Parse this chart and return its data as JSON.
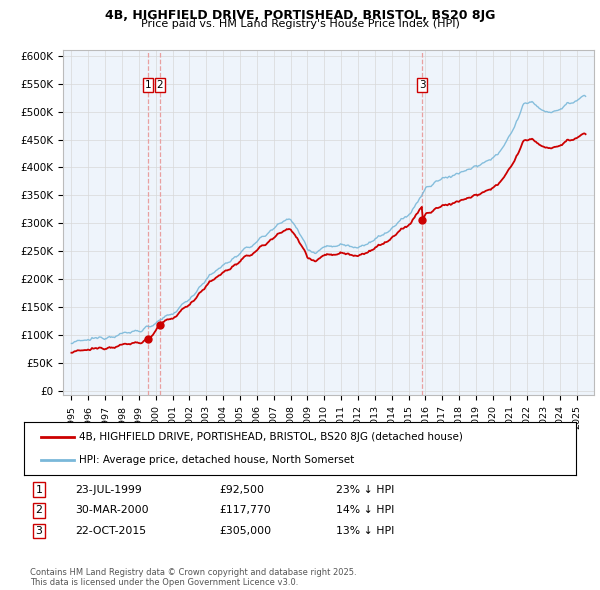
{
  "title": "4B, HIGHFIELD DRIVE, PORTISHEAD, BRISTOL, BS20 8JG",
  "subtitle": "Price paid vs. HM Land Registry's House Price Index (HPI)",
  "ylabel_ticks": [
    "£0",
    "£50K",
    "£100K",
    "£150K",
    "£200K",
    "£250K",
    "£300K",
    "£350K",
    "£400K",
    "£450K",
    "£500K",
    "£550K",
    "£600K"
  ],
  "ytick_values": [
    0,
    50000,
    100000,
    150000,
    200000,
    250000,
    300000,
    350000,
    400000,
    450000,
    500000,
    550000,
    600000
  ],
  "x_start_year": 1995,
  "x_end_year": 2025,
  "legend_line1": "4B, HIGHFIELD DRIVE, PORTISHEAD, BRISTOL, BS20 8JG (detached house)",
  "legend_line2": "HPI: Average price, detached house, North Somerset",
  "sale_labels": [
    {
      "num": "1",
      "date": "23-JUL-1999",
      "price": "£92,500",
      "hpi": "23% ↓ HPI",
      "year": 1999.55,
      "value": 92500
    },
    {
      "num": "2",
      "date": "30-MAR-2000",
      "price": "£117,770",
      "hpi": "14% ↓ HPI",
      "year": 2000.25,
      "value": 117770
    },
    {
      "num": "3",
      "date": "22-OCT-2015",
      "price": "£305,000",
      "hpi": "13% ↓ HPI",
      "year": 2015.8,
      "value": 305000
    }
  ],
  "footer": "Contains HM Land Registry data © Crown copyright and database right 2025.\nThis data is licensed under the Open Government Licence v3.0.",
  "hpi_color": "#7ab8d9",
  "price_color": "#cc0000",
  "vline_color": "#e8a0a0",
  "grid_color": "#d8d8d8",
  "plot_bg_color": "#eef4fb",
  "background_color": "#ffffff"
}
